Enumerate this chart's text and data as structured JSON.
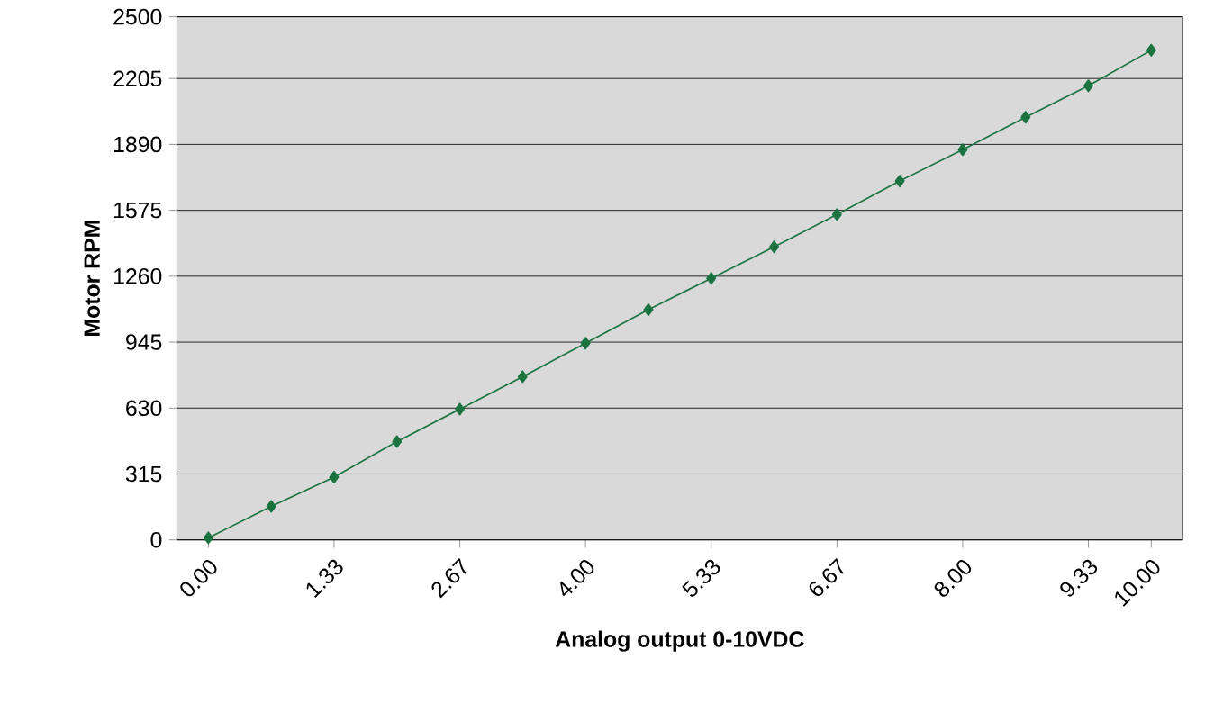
{
  "chart_data": {
    "type": "line",
    "xlabel": "Analog output 0-10VDC",
    "ylabel": "Motor RPM",
    "x": [
      0,
      0.667,
      1.333,
      2,
      2.667,
      3.333,
      4,
      4.667,
      5.333,
      6,
      6.667,
      7.333,
      8,
      8.667,
      9.333,
      10
    ],
    "series": [
      {
        "color": "#1b7340",
        "values": [
          10,
          160,
          300,
          470,
          625,
          780,
          940,
          1100,
          1250,
          1400,
          1555,
          1715,
          1865,
          2020,
          2170,
          2340
        ]
      }
    ],
    "xlim": [
      -0.333,
      10.333
    ],
    "xticks": [
      {
        "value": 0,
        "label": "0.00"
      },
      {
        "value": 1.333,
        "label": "1.33"
      },
      {
        "value": 2.667,
        "label": "2.67"
      },
      {
        "value": 4,
        "label": "4.00"
      },
      {
        "value": 5.333,
        "label": "5.33"
      },
      {
        "value": 6.667,
        "label": "6.67"
      },
      {
        "value": 8,
        "label": "8.00"
      },
      {
        "value": 9.333,
        "label": "9.33"
      },
      {
        "value": 10,
        "label": "10.00"
      }
    ],
    "ylim": [
      0,
      2500
    ],
    "yticks": [
      0,
      315,
      630,
      945,
      1260,
      1575,
      1890,
      2205,
      2500
    ],
    "grid": "y",
    "marker": "diamond",
    "line_style": "solid"
  }
}
